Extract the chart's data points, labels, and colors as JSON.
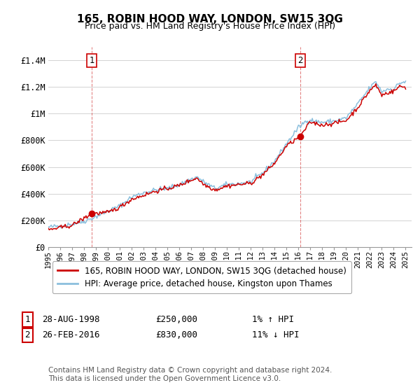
{
  "title": "165, ROBIN HOOD WAY, LONDON, SW15 3QG",
  "subtitle": "Price paid vs. HM Land Registry's House Price Index (HPI)",
  "background_color": "#ffffff",
  "grid_color": "#cccccc",
  "sale1": {
    "date_num": 1998.65,
    "price": 250000,
    "label": "1",
    "date_str": "28-AUG-1998",
    "hpi_change": "1% ↑ HPI"
  },
  "sale2": {
    "date_num": 2016.15,
    "price": 830000,
    "label": "2",
    "date_str": "26-FEB-2016",
    "hpi_change": "11% ↓ HPI"
  },
  "hpi_line_color": "#8bbfdd",
  "price_line_color": "#cc0000",
  "marker_color": "#cc0000",
  "dashed_line_color": "#cc0000",
  "legend_label_price": "165, ROBIN HOOD WAY, LONDON, SW15 3QG (detached house)",
  "legend_label_hpi": "HPI: Average price, detached house, Kingston upon Thames",
  "footnote": "Contains HM Land Registry data © Crown copyright and database right 2024.\nThis data is licensed under the Open Government Licence v3.0.",
  "ylim": [
    0,
    1500000
  ],
  "xlim_start": 1995,
  "xlim_end": 2025.5,
  "yticks": [
    0,
    200000,
    400000,
    600000,
    800000,
    1000000,
    1200000,
    1400000
  ],
  "ytick_labels": [
    "£0",
    "£200K",
    "£400K",
    "£600K",
    "£800K",
    "£1M",
    "£1.2M",
    "£1.4M"
  ],
  "hpi_base_points": [
    [
      1995.0,
      148000
    ],
    [
      1996.0,
      158000
    ],
    [
      1997.0,
      172000
    ],
    [
      1998.0,
      192000
    ],
    [
      1999.0,
      228000
    ],
    [
      2000.0,
      268000
    ],
    [
      2001.0,
      308000
    ],
    [
      2002.0,
      375000
    ],
    [
      2003.0,
      408000
    ],
    [
      2004.0,
      428000
    ],
    [
      2005.0,
      438000
    ],
    [
      2006.0,
      468000
    ],
    [
      2007.0,
      508000
    ],
    [
      2007.5,
      525000
    ],
    [
      2008.0,
      490000
    ],
    [
      2009.0,
      438000
    ],
    [
      2010.0,
      468000
    ],
    [
      2011.0,
      475000
    ],
    [
      2012.0,
      488000
    ],
    [
      2013.0,
      555000
    ],
    [
      2014.0,
      645000
    ],
    [
      2015.0,
      775000
    ],
    [
      2016.0,
      895000
    ],
    [
      2016.5,
      935000
    ],
    [
      2017.0,
      955000
    ],
    [
      2017.5,
      940000
    ],
    [
      2018.0,
      935000
    ],
    [
      2019.0,
      945000
    ],
    [
      2020.0,
      968000
    ],
    [
      2021.0,
      1075000
    ],
    [
      2022.0,
      1195000
    ],
    [
      2022.5,
      1240000
    ],
    [
      2023.0,
      1165000
    ],
    [
      2023.5,
      1185000
    ],
    [
      2024.0,
      1185000
    ],
    [
      2024.5,
      1230000
    ],
    [
      2025.0,
      1240000
    ]
  ],
  "price_base_points": [
    [
      1995.0,
      128000
    ],
    [
      1997.0,
      162000
    ],
    [
      1998.65,
      250000
    ],
    [
      2000.0,
      258000
    ],
    [
      2001.0,
      298000
    ],
    [
      2002.0,
      358000
    ],
    [
      2003.0,
      388000
    ],
    [
      2004.0,
      418000
    ],
    [
      2005.0,
      438000
    ],
    [
      2006.0,
      462000
    ],
    [
      2007.0,
      502000
    ],
    [
      2007.5,
      518000
    ],
    [
      2008.0,
      472000
    ],
    [
      2009.0,
      428000
    ],
    [
      2010.0,
      458000
    ],
    [
      2011.0,
      468000
    ],
    [
      2012.0,
      478000
    ],
    [
      2013.0,
      542000
    ],
    [
      2014.0,
      628000
    ],
    [
      2015.0,
      758000
    ],
    [
      2016.15,
      830000
    ],
    [
      2017.0,
      938000
    ],
    [
      2017.5,
      925000
    ],
    [
      2018.0,
      915000
    ],
    [
      2019.0,
      928000
    ],
    [
      2020.0,
      948000
    ],
    [
      2021.0,
      1048000
    ],
    [
      2022.0,
      1175000
    ],
    [
      2022.5,
      1215000
    ],
    [
      2023.0,
      1138000
    ],
    [
      2023.5,
      1158000
    ],
    [
      2024.0,
      1168000
    ],
    [
      2024.5,
      1205000
    ],
    [
      2025.0,
      1198000
    ]
  ]
}
